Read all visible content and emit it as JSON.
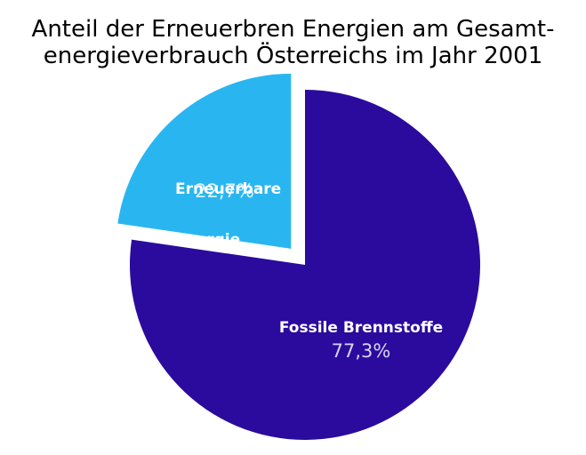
{
  "chart_data": {
    "type": "pie",
    "title": "Anteil der Erneuerbren Energien am Gesamt-energieverbrauch Österreichs im Jahr 2001",
    "title_lines": [
      "Anteil der Erneuerbren Energien am Gesamt-",
      "energieverbrauch Österreichs im Jahr 2001"
    ],
    "slices": [
      {
        "label": "Erneuerbare Energie",
        "label_lines": [
          "Erneuerbare",
          "Energie"
        ],
        "value": 22.7,
        "pct_label": "22,7%",
        "color": "#29B6F0",
        "exploded": true
      },
      {
        "label": "Fossile Brennstoffe",
        "label_lines": [
          "Fossile Brennstoffe"
        ],
        "value": 77.3,
        "pct_label": "77,3%",
        "color": "#2B0B9D",
        "exploded": false
      }
    ],
    "start_angle": 90,
    "direction": "counterclockwise",
    "legend": "none",
    "background": "#ffffff",
    "text_colors": {
      "title": "#000000",
      "slice_label": "#ffffff"
    }
  }
}
